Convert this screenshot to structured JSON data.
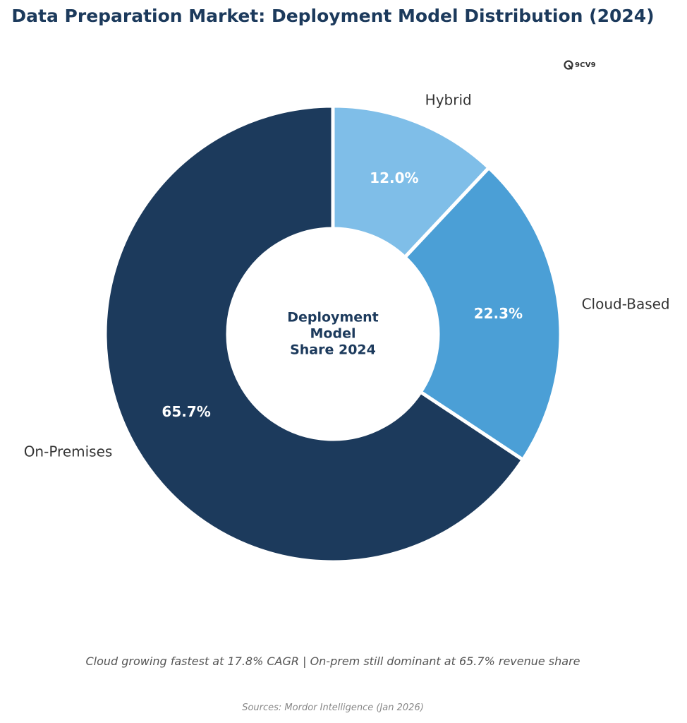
{
  "title": "Data Preparation Market: Deployment Model Distribution (2024)",
  "logo": {
    "text": "9CV9",
    "icon": "9cv9-logo-icon"
  },
  "chart_data": {
    "type": "pie",
    "donut": true,
    "categories": [
      "Hybrid",
      "Cloud-Based",
      "On-Premises"
    ],
    "values": [
      12.0,
      22.3,
      65.7
    ],
    "value_labels": [
      "12.0%",
      "22.3%",
      "65.7%"
    ],
    "colors": [
      "#7fbee8",
      "#4b9fd6",
      "#1c3a5c"
    ],
    "start_angle": "12 o'clock, clockwise",
    "center_label": [
      "Deployment",
      "Model",
      "Share 2024"
    ],
    "legend": "none"
  },
  "subtitle": "Cloud growing fastest at 17.8% CAGR | On-prem still dominant at 65.7% revenue share",
  "source": "Sources: Mordor Intelligence (Jan 2026)",
  "colors": {
    "title": "#1c3a5c",
    "category_label": "#333333",
    "value_label": "#ffffff"
  }
}
